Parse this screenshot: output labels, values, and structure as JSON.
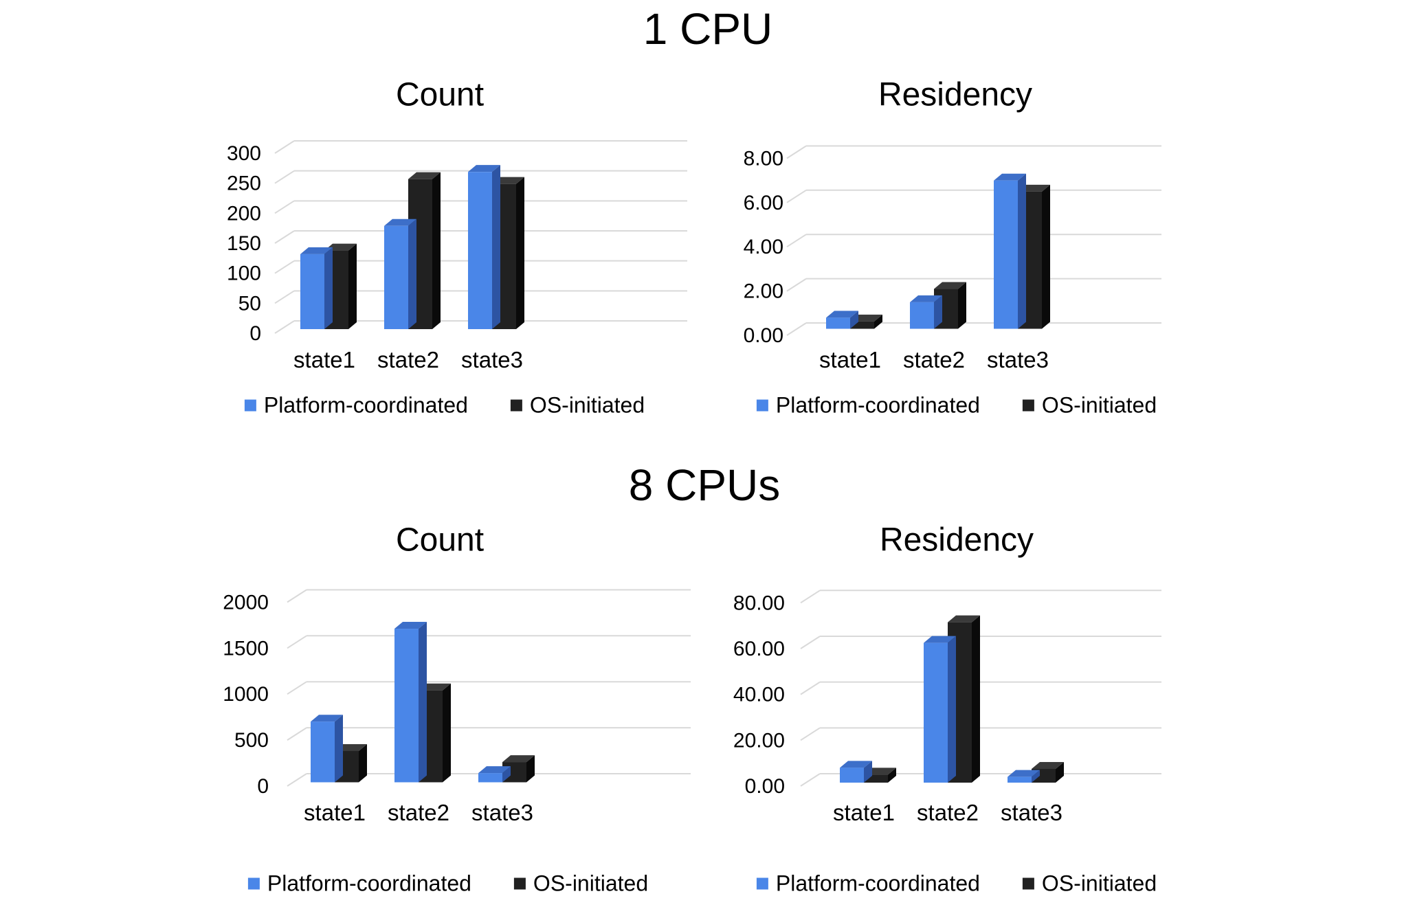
{
  "figure": {
    "sections": [
      {
        "title": "1 CPU"
      },
      {
        "title": "8 CPUs"
      }
    ],
    "legend_items": [
      {
        "label": "Platform-coordinated",
        "color": "#4a86e8"
      },
      {
        "label": "OS-initiated",
        "color": "#212121"
      }
    ]
  },
  "colors": {
    "background": "#ffffff",
    "text": "#000000",
    "gridline": "#d9d9d9",
    "series1": {
      "front": "#4a86e8",
      "top": "#3d6fc9",
      "side": "#2d54a3"
    },
    "series2": {
      "front": "#212121",
      "top": "#3a3a3a",
      "side": "#0a0a0a"
    }
  },
  "chart_data": [
    {
      "id": "cpu1-count",
      "type": "bar",
      "style": "3d-column",
      "section": "1 CPU",
      "title": "Count",
      "categories": [
        "state1",
        "state2",
        "state3"
      ],
      "series": [
        {
          "name": "Platform-coordinated",
          "values": [
            125,
            172,
            262
          ]
        },
        {
          "name": "OS-initiated",
          "values": [
            131,
            250,
            242
          ]
        }
      ],
      "ylim": [
        0,
        300
      ],
      "yticks": [
        0,
        50,
        100,
        150,
        200,
        250,
        300
      ],
      "tick_format": "int",
      "grid": true,
      "legend_position": "bottom"
    },
    {
      "id": "cpu1-residency",
      "type": "bar",
      "style": "3d-column",
      "section": "1 CPU",
      "title": "Residency",
      "categories": [
        "state1",
        "state2",
        "state3"
      ],
      "series": [
        {
          "name": "Platform-coordinated",
          "values": [
            0.5,
            1.2,
            6.7
          ]
        },
        {
          "name": "OS-initiated",
          "values": [
            0.33,
            1.8,
            6.2
          ]
        }
      ],
      "ylim": [
        0,
        8
      ],
      "yticks": [
        0,
        2,
        4,
        6,
        8
      ],
      "tick_format": "2dp",
      "grid": true,
      "legend_position": "bottom"
    },
    {
      "id": "cpu8-count",
      "type": "bar",
      "style": "3d-column",
      "section": "8 CPUs",
      "title": "Count",
      "categories": [
        "state1",
        "state2",
        "state3"
      ],
      "series": [
        {
          "name": "Platform-coordinated",
          "values": [
            660,
            1670,
            100
          ]
        },
        {
          "name": "OS-initiated",
          "values": [
            340,
            1000,
            220
          ]
        }
      ],
      "ylim": [
        0,
        2000
      ],
      "yticks": [
        0,
        500,
        1000,
        1500,
        2000
      ],
      "tick_format": "int",
      "grid": true,
      "legend_position": "bottom"
    },
    {
      "id": "cpu8-residency",
      "type": "bar",
      "style": "3d-column",
      "section": "8 CPUs",
      "title": "Residency",
      "categories": [
        "state1",
        "state2",
        "state3"
      ],
      "series": [
        {
          "name": "Platform-coordinated",
          "values": [
            6.5,
            61,
            2.5
          ]
        },
        {
          "name": "OS-initiated",
          "values": [
            3.5,
            70,
            6
          ]
        }
      ],
      "ylim": [
        0,
        80
      ],
      "yticks": [
        0,
        20,
        40,
        60,
        80
      ],
      "tick_format": "2dp",
      "grid": true,
      "legend_position": "bottom"
    }
  ]
}
